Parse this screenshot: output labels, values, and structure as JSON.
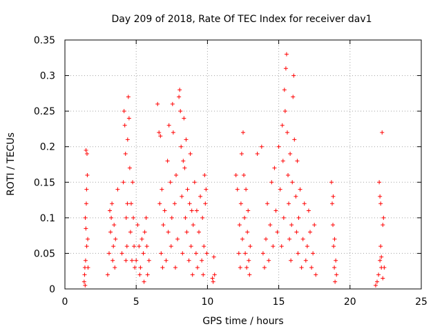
{
  "chart_data": {
    "type": "scatter",
    "title": "Day 209 of 2018, Rate Of TEC Index for receiver dav1",
    "xlabel": "GPS time / hours",
    "ylabel": "ROTI / TECUs",
    "xlim": [
      0,
      25
    ],
    "ylim": [
      0,
      0.35
    ],
    "xticks": [
      0,
      5,
      10,
      15,
      20,
      25
    ],
    "yticks": [
      0,
      0.05,
      0.1,
      0.15,
      0.2,
      0.25,
      0.3,
      0.35
    ],
    "xtick_labels": [
      "0",
      "5",
      "10",
      "15",
      "20",
      "25"
    ],
    "ytick_labels": [
      "0",
      "0.05",
      "0.1",
      "0.15",
      "0.2",
      "0.25",
      "0.3",
      "0.35"
    ],
    "grid": true,
    "marker": "plus",
    "color": "#ff0000",
    "series": [
      {
        "points": [
          [
            1.35,
            0.01
          ],
          [
            1.38,
            0.02
          ],
          [
            1.4,
            0.03
          ],
          [
            1.42,
            0.005
          ],
          [
            1.45,
            0.04
          ],
          [
            1.47,
            0.085
          ],
          [
            1.5,
            0.12
          ],
          [
            1.52,
            0.14
          ],
          [
            1.55,
            0.19
          ],
          [
            1.57,
            0.16
          ],
          [
            1.6,
            0.07
          ],
          [
            1.62,
            0.03
          ],
          [
            1.43,
            0.1
          ],
          [
            1.48,
            0.195
          ],
          [
            1.53,
            0.06
          ],
          [
            3.0,
            0.02
          ],
          [
            3.1,
            0.05
          ],
          [
            3.2,
            0.08
          ],
          [
            3.25,
            0.1
          ],
          [
            3.3,
            0.12
          ],
          [
            3.35,
            0.04
          ],
          [
            3.4,
            0.06
          ],
          [
            3.5,
            0.03
          ],
          [
            3.55,
            0.07
          ],
          [
            3.15,
            0.11
          ],
          [
            3.45,
            0.09
          ],
          [
            3.7,
            0.14
          ],
          [
            4.0,
            0.05
          ],
          [
            4.1,
            0.15
          ],
          [
            4.15,
            0.25
          ],
          [
            4.2,
            0.23
          ],
          [
            4.25,
            0.19
          ],
          [
            4.3,
            0.1
          ],
          [
            4.35,
            0.06
          ],
          [
            4.4,
            0.21
          ],
          [
            4.45,
            0.27
          ],
          [
            4.5,
            0.24
          ],
          [
            4.55,
            0.17
          ],
          [
            4.6,
            0.08
          ],
          [
            4.65,
            0.12
          ],
          [
            4.7,
            0.04
          ],
          [
            4.75,
            0.15
          ],
          [
            4.8,
            0.1
          ],
          [
            4.85,
            0.06
          ],
          [
            4.9,
            0.03
          ],
          [
            4.38,
            0.12
          ],
          [
            4.28,
            0.04
          ],
          [
            5.0,
            0.04
          ],
          [
            5.1,
            0.09
          ],
          [
            5.2,
            0.06
          ],
          [
            5.3,
            0.03
          ],
          [
            5.4,
            0.07
          ],
          [
            5.5,
            0.05
          ],
          [
            5.6,
            0.08
          ],
          [
            5.7,
            0.1
          ],
          [
            5.8,
            0.02
          ],
          [
            5.9,
            0.04
          ],
          [
            5.25,
            0.02
          ],
          [
            5.55,
            0.01
          ],
          [
            5.75,
            0.06
          ],
          [
            6.5,
            0.26
          ],
          [
            6.6,
            0.22
          ],
          [
            6.7,
            0.215
          ],
          [
            6.65,
            0.12
          ],
          [
            6.75,
            0.05
          ],
          [
            6.8,
            0.14
          ],
          [
            6.85,
            0.03
          ],
          [
            6.9,
            0.09
          ],
          [
            7.0,
            0.11
          ],
          [
            7.1,
            0.04
          ],
          [
            7.2,
            0.18
          ],
          [
            7.25,
            0.08
          ],
          [
            7.3,
            0.23
          ],
          [
            7.4,
            0.15
          ],
          [
            7.45,
            0.06
          ],
          [
            7.5,
            0.1
          ],
          [
            7.55,
            0.26
          ],
          [
            7.6,
            0.22
          ],
          [
            7.7,
            0.12
          ],
          [
            7.75,
            0.03
          ],
          [
            7.8,
            0.16
          ],
          [
            7.9,
            0.07
          ],
          [
            8.0,
            0.27
          ],
          [
            8.05,
            0.28
          ],
          [
            8.1,
            0.25
          ],
          [
            8.15,
            0.2
          ],
          [
            8.2,
            0.13
          ],
          [
            8.25,
            0.05
          ],
          [
            8.3,
            0.18
          ],
          [
            8.35,
            0.24
          ],
          [
            8.4,
            0.17
          ],
          [
            8.45,
            0.1
          ],
          [
            8.5,
            0.21
          ],
          [
            8.55,
            0.08
          ],
          [
            8.6,
            0.14
          ],
          [
            8.7,
            0.04
          ],
          [
            8.75,
            0.12
          ],
          [
            8.8,
            0.19
          ],
          [
            8.85,
            0.06
          ],
          [
            8.9,
            0.11
          ],
          [
            8.95,
            0.02
          ],
          [
            9.0,
            0.09
          ],
          [
            9.1,
            0.15
          ],
          [
            9.2,
            0.05
          ],
          [
            9.25,
            0.11
          ],
          [
            9.3,
            0.03
          ],
          [
            9.4,
            0.08
          ],
          [
            9.5,
            0.13
          ],
          [
            9.6,
            0.04
          ],
          [
            9.65,
            0.1
          ],
          [
            9.7,
            0.02
          ],
          [
            9.75,
            0.06
          ],
          [
            9.8,
            0.16
          ],
          [
            9.85,
            0.12
          ],
          [
            9.9,
            0.14
          ],
          [
            9.95,
            0.05
          ],
          [
            10.35,
            0.015
          ],
          [
            10.4,
            0.01
          ],
          [
            10.45,
            0.045
          ],
          [
            10.5,
            0.02
          ],
          [
            12.0,
            0.16
          ],
          [
            12.1,
            0.14
          ],
          [
            12.2,
            0.05
          ],
          [
            12.25,
            0.09
          ],
          [
            12.3,
            0.03
          ],
          [
            12.35,
            0.12
          ],
          [
            12.4,
            0.19
          ],
          [
            12.45,
            0.07
          ],
          [
            12.5,
            0.22
          ],
          [
            12.55,
            0.16
          ],
          [
            12.6,
            0.1
          ],
          [
            12.65,
            0.05
          ],
          [
            12.7,
            0.14
          ],
          [
            12.75,
            0.03
          ],
          [
            12.8,
            0.08
          ],
          [
            12.85,
            0.11
          ],
          [
            12.9,
            0.04
          ],
          [
            12.95,
            0.02
          ],
          [
            13.0,
            0.06
          ],
          [
            13.5,
            0.19
          ],
          [
            13.8,
            0.2
          ],
          [
            13.9,
            0.05
          ],
          [
            14.0,
            0.03
          ],
          [
            14.1,
            0.07
          ],
          [
            14.2,
            0.12
          ],
          [
            14.3,
            0.04
          ],
          [
            14.4,
            0.09
          ],
          [
            14.5,
            0.15
          ],
          [
            14.6,
            0.06
          ],
          [
            14.7,
            0.17
          ],
          [
            14.8,
            0.11
          ],
          [
            14.9,
            0.08
          ],
          [
            15.0,
            0.2
          ],
          [
            15.1,
            0.14
          ],
          [
            15.2,
            0.06
          ],
          [
            15.25,
            0.23
          ],
          [
            15.3,
            0.18
          ],
          [
            15.35,
            0.1
          ],
          [
            15.4,
            0.28
          ],
          [
            15.45,
            0.25
          ],
          [
            15.5,
            0.31
          ],
          [
            15.55,
            0.33
          ],
          [
            15.6,
            0.22
          ],
          [
            15.65,
            0.16
          ],
          [
            15.7,
            0.12
          ],
          [
            15.75,
            0.07
          ],
          [
            15.8,
            0.19
          ],
          [
            15.85,
            0.04
          ],
          [
            15.9,
            0.09
          ],
          [
            15.95,
            0.15
          ],
          [
            16.0,
            0.27
          ],
          [
            16.05,
            0.3
          ],
          [
            16.1,
            0.21
          ],
          [
            16.2,
            0.13
          ],
          [
            16.25,
            0.08
          ],
          [
            16.3,
            0.18
          ],
          [
            16.35,
            0.05
          ],
          [
            16.4,
            0.1
          ],
          [
            16.5,
            0.14
          ],
          [
            16.6,
            0.03
          ],
          [
            16.7,
            0.07
          ],
          [
            16.8,
            0.12
          ],
          [
            16.9,
            0.04
          ],
          [
            17.0,
            0.06
          ],
          [
            17.1,
            0.11
          ],
          [
            17.2,
            0.08
          ],
          [
            17.3,
            0.03
          ],
          [
            17.4,
            0.05
          ],
          [
            17.5,
            0.09
          ],
          [
            17.6,
            0.02
          ],
          [
            18.7,
            0.15
          ],
          [
            18.75,
            0.12
          ],
          [
            18.8,
            0.09
          ],
          [
            18.85,
            0.06
          ],
          [
            18.9,
            0.03
          ],
          [
            18.95,
            0.01
          ],
          [
            19.0,
            0.04
          ],
          [
            19.05,
            0.02
          ],
          [
            18.82,
            0.13
          ],
          [
            18.92,
            0.07
          ],
          [
            21.8,
            0.005
          ],
          [
            21.9,
            0.01
          ],
          [
            22.0,
            0.02
          ],
          [
            22.05,
            0.15
          ],
          [
            22.1,
            0.13
          ],
          [
            22.15,
            0.06
          ],
          [
            22.2,
            0.03
          ],
          [
            22.25,
            0.22
          ],
          [
            22.3,
            0.09
          ],
          [
            22.35,
            0.1
          ],
          [
            22.1,
            0.04
          ],
          [
            22.2,
            0.045
          ],
          [
            22.3,
            0.015
          ],
          [
            22.15,
            0.12
          ],
          [
            22.4,
            0.03
          ]
        ]
      }
    ]
  }
}
